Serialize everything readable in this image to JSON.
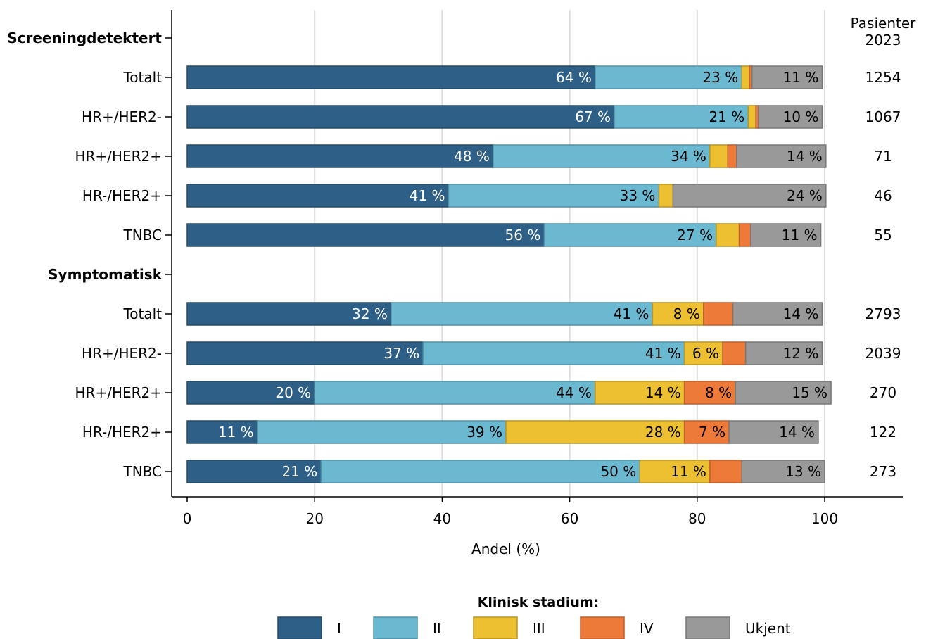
{
  "chart_data": {
    "type": "bar",
    "orientation": "horizontal",
    "stacked": true,
    "xlabel": "Andel (%)",
    "xlim": [
      0,
      100
    ],
    "xticks": [
      0,
      20,
      40,
      60,
      80,
      100
    ],
    "grid": true,
    "right_header": [
      "Pasienter",
      "2023"
    ],
    "legend": {
      "title": "Klinisk stadium:",
      "placement": "bottom"
    },
    "series": [
      {
        "name": "I",
        "color": "#2e5f86"
      },
      {
        "name": "II",
        "color": "#6bb9d1"
      },
      {
        "name": "III",
        "color": "#ecc030"
      },
      {
        "name": "IV",
        "color": "#ee7a3a"
      },
      {
        "name": "Ukjent",
        "color": "#999999"
      }
    ],
    "rows": [
      {
        "label": "Screeningdetektert",
        "header": true
      },
      {
        "label": "Totalt",
        "values": [
          64,
          23,
          1.2,
          0.4,
          11
        ],
        "labels": [
          "64 %",
          "23 %",
          "",
          "",
          "11 %"
        ],
        "patients": "1254"
      },
      {
        "label": "HR+/HER2-",
        "values": [
          67,
          21,
          1.2,
          0.4,
          10
        ],
        "labels": [
          "67 %",
          "21 %",
          "",
          "",
          "10 %"
        ],
        "patients": "1067"
      },
      {
        "label": "HR+/HER2+",
        "values": [
          48,
          34,
          2.8,
          1.4,
          14
        ],
        "labels": [
          "48 %",
          "34 %",
          "",
          "",
          "14 %"
        ],
        "patients": "71"
      },
      {
        "label": "HR-/HER2+",
        "values": [
          41,
          33,
          2.2,
          0,
          24
        ],
        "labels": [
          "41 %",
          "33 %",
          "",
          "",
          "24 %"
        ],
        "patients": "46"
      },
      {
        "label": "TNBC",
        "values": [
          56,
          27,
          3.6,
          1.8,
          11
        ],
        "labels": [
          "56 %",
          "27 %",
          "",
          "",
          "11 %"
        ],
        "patients": "55"
      },
      {
        "label": "Symptomatisk",
        "header": true
      },
      {
        "label": "Totalt",
        "values": [
          32,
          41,
          8,
          4.6,
          14
        ],
        "labels": [
          "32 %",
          "41 %",
          "8 %",
          "",
          "14 %"
        ],
        "patients": "2793"
      },
      {
        "label": "HR+/HER2-",
        "values": [
          37,
          41,
          6,
          3.6,
          12
        ],
        "labels": [
          "37 %",
          "41 %",
          "6 %",
          "",
          "12 %"
        ],
        "patients": "2039"
      },
      {
        "label": "HR+/HER2+",
        "values": [
          20,
          44,
          14,
          8,
          15
        ],
        "labels": [
          "20 %",
          "44 %",
          "14 %",
          "8 %",
          "15 %"
        ],
        "patients": "270"
      },
      {
        "label": "HR-/HER2+",
        "values": [
          11,
          39,
          28,
          7,
          14
        ],
        "labels": [
          "11 %",
          "39 %",
          "28 %",
          "7 %",
          "14 %"
        ],
        "patients": "122"
      },
      {
        "label": "TNBC",
        "values": [
          21,
          50,
          11,
          5,
          13
        ],
        "labels": [
          "21 %",
          "50 %",
          "11 %",
          "",
          "13 %"
        ],
        "patients": "273"
      }
    ]
  }
}
